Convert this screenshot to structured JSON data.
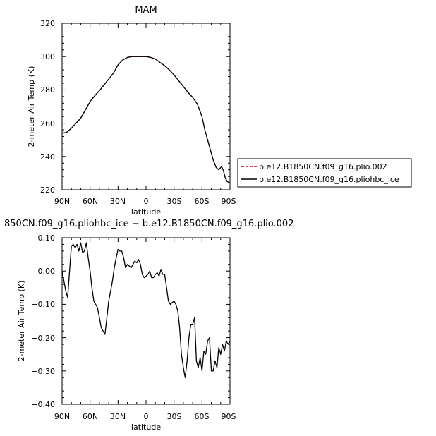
{
  "chart_data": [
    {
      "type": "line",
      "title": "MAM",
      "xlabel": "latitude",
      "ylabel": "2-meter Air Temp (K)",
      "xlim": [
        90,
        -90
      ],
      "ylim": [
        220,
        320
      ],
      "x_ticks": [
        90,
        60,
        30,
        0,
        -30,
        -60,
        -90
      ],
      "x_tick_labels": [
        "90N",
        "60N",
        "30N",
        "0",
        "30S",
        "60S",
        "90S"
      ],
      "y_ticks": [
        220,
        240,
        260,
        280,
        300,
        320
      ],
      "y_tick_labels": [
        "220",
        "240",
        "260",
        "280",
        "300",
        "320"
      ],
      "legend_position": "right",
      "colors": {
        "red": "#c00000",
        "black": "#000000"
      },
      "series": [
        {
          "name": "b.e12.B1850CN.f09_g16.plio.002",
          "color": "#c00000",
          "dash": "dashed",
          "x": [
            90,
            85,
            80,
            75,
            70,
            65,
            60,
            55,
            50,
            45,
            40,
            35,
            30,
            25,
            20,
            15,
            10,
            5,
            0,
            -5,
            -10,
            -15,
            -20,
            -25,
            -30,
            -35,
            -40,
            -45,
            -50,
            -55,
            -60,
            -63,
            -66,
            -69,
            -72,
            -75,
            -78,
            -81,
            -83,
            -85,
            -87,
            -90
          ],
          "values": [
            254,
            254.5,
            257,
            260,
            263,
            268,
            273,
            276.5,
            279.5,
            283,
            286.5,
            290,
            295,
            298,
            299.5,
            300,
            300,
            300,
            300,
            299.5,
            298.5,
            296.5,
            294.5,
            292,
            289,
            285.5,
            282,
            278.5,
            275.5,
            271.5,
            264,
            256,
            250,
            244,
            238,
            233.5,
            232,
            234,
            231.5,
            227,
            225,
            224
          ]
        },
        {
          "name": "b.e12.B1850CN.f09_g16.pliohbc_ice",
          "color": "#000000",
          "dash": "solid",
          "x": [
            90,
            85,
            80,
            75,
            70,
            65,
            60,
            55,
            50,
            45,
            40,
            35,
            30,
            25,
            20,
            15,
            10,
            5,
            0,
            -5,
            -10,
            -15,
            -20,
            -25,
            -30,
            -35,
            -40,
            -45,
            -50,
            -55,
            -60,
            -63,
            -66,
            -69,
            -72,
            -75,
            -78,
            -81,
            -83,
            -85,
            -87,
            -90
          ],
          "values": [
            254,
            254.5,
            257,
            260,
            263,
            268,
            273,
            276.5,
            279.5,
            283,
            286.5,
            290,
            295,
            298,
            299.5,
            300,
            300,
            300,
            300,
            299.5,
            298.5,
            296.5,
            294.5,
            292,
            289,
            285.5,
            282,
            278.5,
            275.5,
            271.5,
            264,
            256,
            250,
            244,
            238,
            233.5,
            232,
            234,
            231.5,
            227,
            225,
            224
          ]
        }
      ]
    },
    {
      "type": "line",
      "title": "850CN.f09_g16.pliohbc_ice − b.e12.B1850CN.f09_g16.plio.002",
      "xlabel": "latitude",
      "ylabel": "2-meter Air Temp (K)",
      "xlim": [
        90,
        -90
      ],
      "ylim": [
        -0.4,
        0.1
      ],
      "x_ticks": [
        90,
        60,
        30,
        0,
        -30,
        -60,
        -90
      ],
      "x_tick_labels": [
        "90N",
        "60N",
        "30N",
        "0",
        "30S",
        "60S",
        "90S"
      ],
      "y_ticks": [
        -0.4,
        -0.3,
        -0.2,
        -0.1,
        0.0,
        0.1
      ],
      "y_tick_labels": [
        "−0.40",
        "−0.30",
        "−0.20",
        "−0.10",
        "0.00",
        "0.10"
      ],
      "series": [
        {
          "color": "#000000",
          "x": [
            90,
            88,
            86,
            84,
            82,
            80,
            78,
            76,
            74,
            72,
            70,
            68,
            66,
            64,
            62,
            60,
            58,
            56,
            54,
            52,
            50,
            48,
            46,
            44,
            42,
            40,
            38,
            36,
            34,
            32,
            30,
            28,
            26,
            24,
            22,
            20,
            18,
            16,
            14,
            12,
            10,
            8,
            6,
            4,
            2,
            0,
            -2,
            -4,
            -6,
            -8,
            -10,
            -12,
            -14,
            -16,
            -18,
            -20,
            -22,
            -24,
            -26,
            -28,
            -30,
            -32,
            -34,
            -36,
            -38,
            -40,
            -42,
            -44,
            -46,
            -48,
            -50,
            -52,
            -54,
            -56,
            -58,
            -60,
            -62,
            -64,
            -66,
            -68,
            -70,
            -72,
            -74,
            -76,
            -78,
            -80,
            -82,
            -84,
            -86,
            -88,
            -90
          ],
          "values": [
            0.0,
            -0.03,
            -0.06,
            -0.08,
            0.0,
            0.075,
            0.08,
            0.07,
            0.08,
            0.06,
            0.085,
            0.055,
            0.06,
            0.085,
            0.04,
            0.0,
            -0.05,
            -0.09,
            -0.1,
            -0.11,
            -0.14,
            -0.17,
            -0.18,
            -0.19,
            -0.14,
            -0.09,
            -0.06,
            -0.03,
            0.01,
            0.04,
            0.065,
            0.06,
            0.06,
            0.04,
            0.01,
            0.02,
            0.015,
            0.01,
            0.02,
            0.03,
            0.025,
            0.035,
            0.02,
            -0.01,
            -0.02,
            -0.015,
            -0.01,
            0.0,
            -0.02,
            -0.02,
            -0.01,
            -0.005,
            -0.015,
            0.005,
            -0.01,
            -0.01,
            -0.05,
            -0.09,
            -0.1,
            -0.095,
            -0.09,
            -0.1,
            -0.12,
            -0.17,
            -0.25,
            -0.29,
            -0.32,
            -0.27,
            -0.2,
            -0.16,
            -0.16,
            -0.14,
            -0.27,
            -0.29,
            -0.26,
            -0.3,
            -0.24,
            -0.25,
            -0.21,
            -0.2,
            -0.3,
            -0.3,
            -0.27,
            -0.29,
            -0.23,
            -0.25,
            -0.22,
            -0.24,
            -0.21,
            -0.22,
            -0.21
          ]
        }
      ]
    }
  ]
}
